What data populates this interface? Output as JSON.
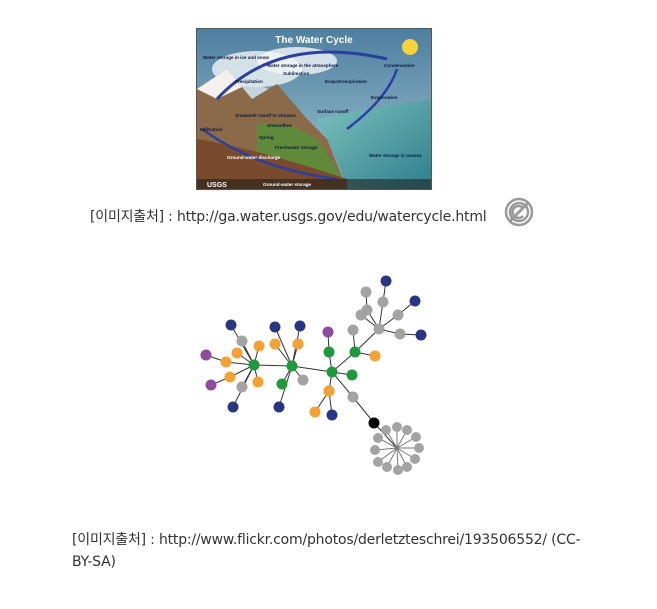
{
  "figure1": {
    "title": "The Water Cycle",
    "logo": "USGS",
    "labels": {
      "ice": "Water storage in ice and snow",
      "atmosphere": "Water storage in the atmosphere",
      "condensation": "Condensation",
      "sublimation": "Sublimation",
      "evapotranspiration": "Evapotranspiration",
      "precipitation": "Precipitation",
      "evaporation": "Evaporation",
      "snowmelt": "Snowmelt runoff to streams",
      "surface_runoff": "Surface runoff",
      "streamflow": "Streamflow",
      "spring": "Spring",
      "infiltration": "Infiltration",
      "freshwater": "Freshwater storage",
      "ocean": "Water storage in oceans",
      "groundwater_discharge": "Ground-water discharge",
      "groundwater_storage": "Ground-water storage"
    }
  },
  "caption1": "[이미지출처] : http://ga.water.usgs.gov/edu/watercycle.html",
  "license_icon": "no-copyright-icon",
  "caption2_line1": "[이미지출처] : http://www.flickr.com/photos/derletzteschrei/193506552/ (CC-",
  "caption2_line2": "BY-SA)",
  "colors": {
    "green": "#1e9a3c",
    "orange": "#f4a233",
    "navy": "#283583",
    "purple": "#8e4a9c",
    "gray": "#a3a3a3",
    "black": "#000000"
  }
}
